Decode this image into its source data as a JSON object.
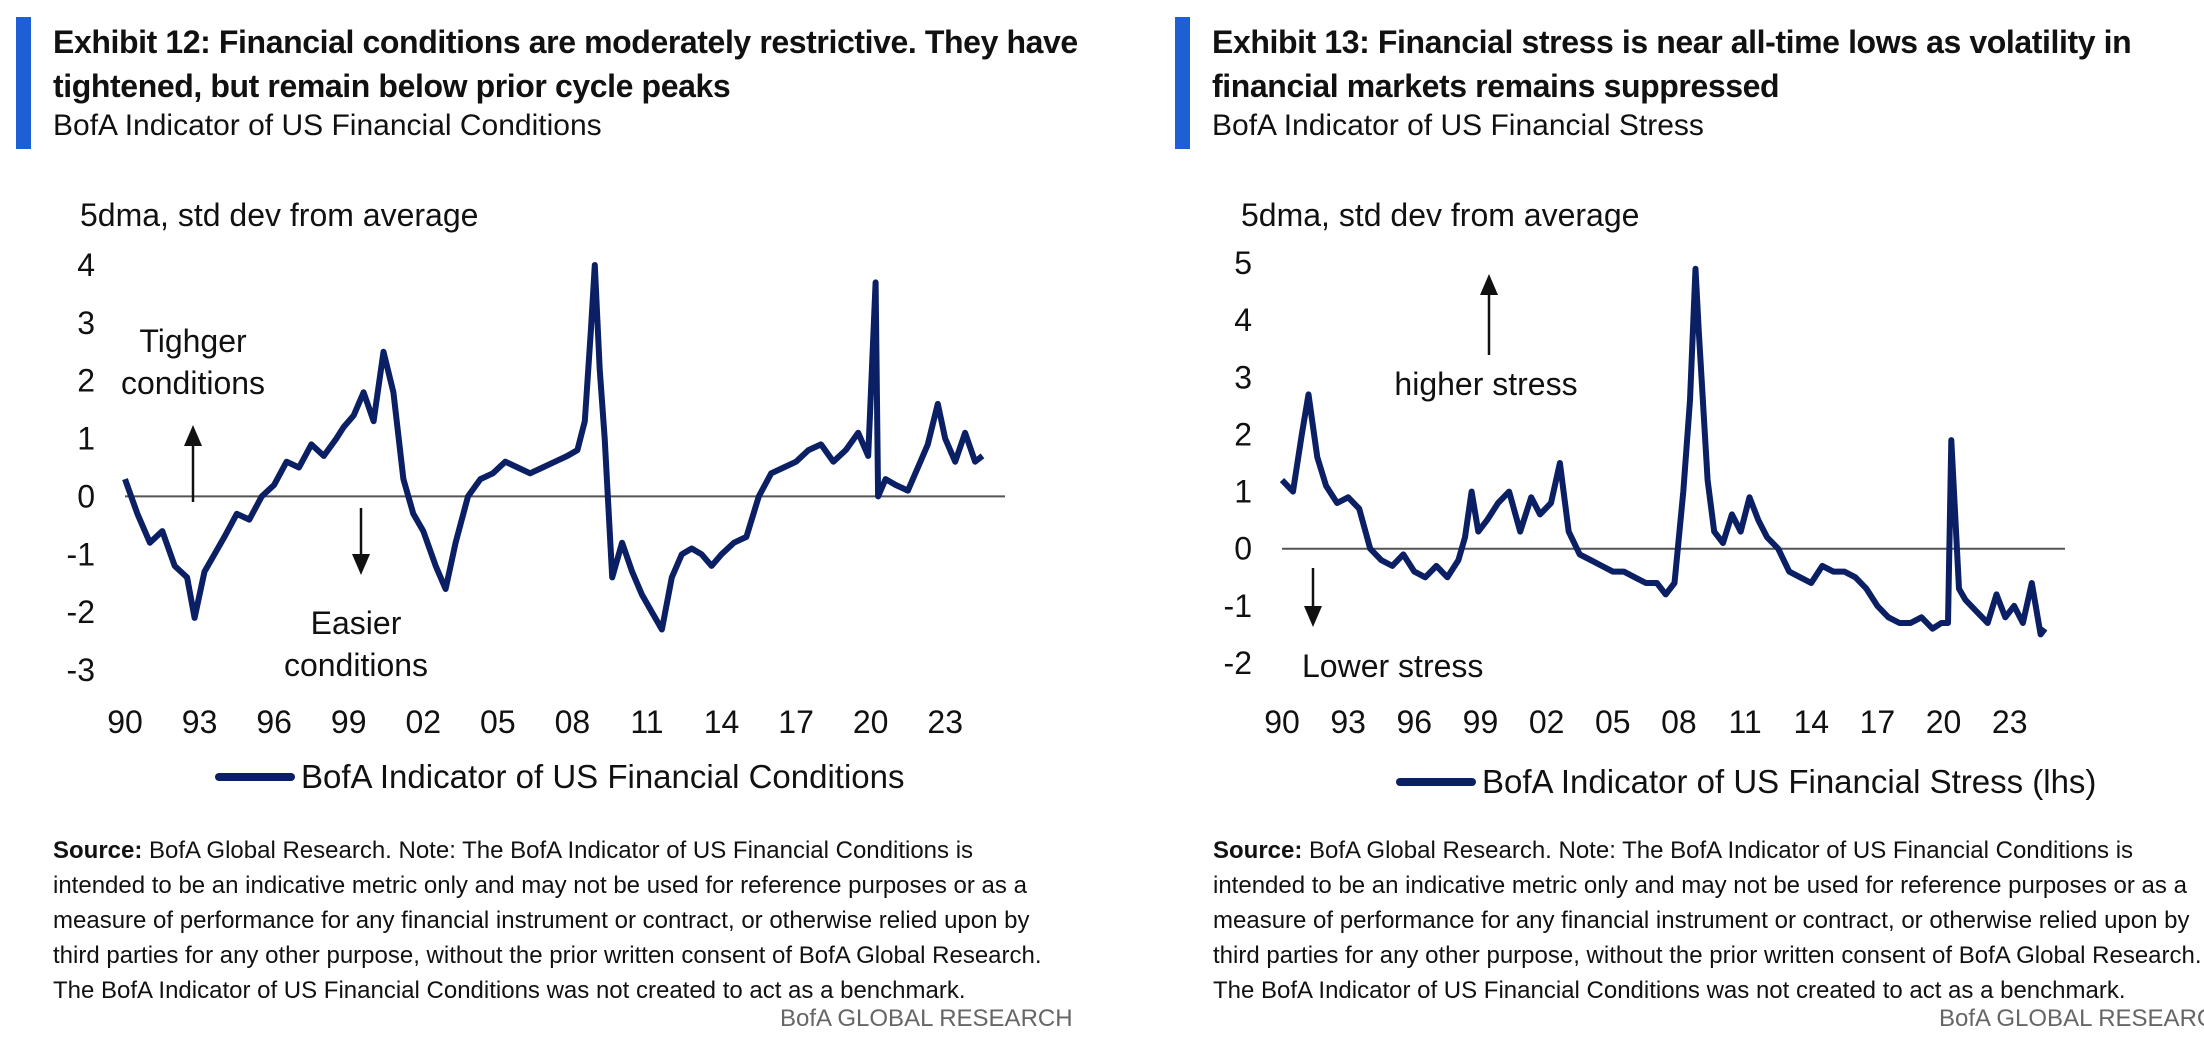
{
  "panels": [
    {
      "exhibit_title": "Exhibit 12: Financial conditions are moderately restrictive. They have tightened, but remain below prior cycle peaks",
      "subtitle": "BofA Indicator of US Financial Conditions",
      "ylabel": "5dma, std dev from average",
      "legend": "BofA Indicator of US Financial Conditions",
      "annotations": {
        "up_line1": "Tighger",
        "up_line2": "conditions",
        "down_line1": "Easier",
        "down_line2": "conditions"
      },
      "source_label": "Source:",
      "source_text": "BofA Global Research. Note: The BofA Indicator of US Financial Conditions is intended to be an indicative metric only and may not be used for reference purposes or as a measure of performance for any financial instrument or contract, or otherwise relied upon by third parties for any other purpose, without the prior written consent of BofA Global Research. The BofA Indicator of US Financial Conditions was not created to act as a benchmark.",
      "brand": "BofA GLOBAL RESEARCH"
    },
    {
      "exhibit_title": "Exhibit 13: Financial stress is near all-time lows as volatility in financial markets remains suppressed",
      "subtitle": "BofA Indicator of US Financial Stress",
      "ylabel": "5dma, std dev from average",
      "legend": "BofA Indicator of US Financial Stress (lhs)",
      "annotations": {
        "up_line1": "higher stress",
        "down_line1": "Lower stress"
      },
      "source_label": "Source:",
      "source_text": "BofA Global Research. Note: The BofA Indicator of US Financial Conditions is intended to be an indicative metric only and may not be used for reference purposes or as a measure of performance for any financial instrument or contract, or otherwise relied upon by third parties for any other purpose, without the prior written consent of BofA Global Research. The BofA Indicator of US Financial Conditions was not created to act as a benchmark.",
      "brand": "BofA GLOBAL RESEARCH"
    }
  ],
  "chart_data": [
    {
      "type": "line",
      "xlabel": "",
      "ylabel": "5dma, std dev from average",
      "xticks": [
        "90",
        "93",
        "96",
        "99",
        "02",
        "05",
        "08",
        "11",
        "14",
        "17",
        "20",
        "23"
      ],
      "yticks": [
        4,
        3,
        2,
        1,
        0,
        -1,
        -2,
        -3
      ],
      "xlim": [
        1990,
        2024.6
      ],
      "ylim": [
        -3,
        4
      ],
      "color": "#0b1f64",
      "series": [
        {
          "name": "BofA Indicator of US Financial Conditions",
          "x": [
            1990.0,
            1990.5,
            1991.0,
            1991.5,
            1992.0,
            1992.5,
            1992.8,
            1993.2,
            1993.6,
            1994.0,
            1994.5,
            1995.0,
            1995.5,
            1996.0,
            1996.5,
            1997.0,
            1997.5,
            1998.0,
            1998.5,
            1998.8,
            1999.2,
            1999.6,
            2000.0,
            2000.4,
            2000.8,
            2001.2,
            2001.6,
            2002.0,
            2002.5,
            2002.9,
            2003.3,
            2003.8,
            2004.3,
            2004.8,
            2005.3,
            2005.8,
            2006.3,
            2006.8,
            2007.3,
            2007.8,
            2008.2,
            2008.5,
            2008.75,
            2008.9,
            2009.1,
            2009.3,
            2009.6,
            2010.0,
            2010.4,
            2010.8,
            2011.2,
            2011.6,
            2012.0,
            2012.4,
            2012.8,
            2013.2,
            2013.6,
            2014.0,
            2014.5,
            2015.0,
            2015.5,
            2016.0,
            2016.5,
            2017.0,
            2017.5,
            2018.0,
            2018.5,
            2019.0,
            2019.5,
            2019.9,
            2020.2,
            2020.3,
            2020.6,
            2021.0,
            2021.5,
            2022.0,
            2022.3,
            2022.7,
            2023.0,
            2023.4,
            2023.8,
            2024.2,
            2024.5
          ],
          "y": [
            0.3,
            -0.3,
            -0.8,
            -0.6,
            -1.2,
            -1.4,
            -2.1,
            -1.3,
            -1.0,
            -0.7,
            -0.3,
            -0.4,
            0.0,
            0.2,
            0.6,
            0.5,
            0.9,
            0.7,
            1.0,
            1.2,
            1.4,
            1.8,
            1.3,
            2.5,
            1.8,
            0.3,
            -0.3,
            -0.6,
            -1.2,
            -1.6,
            -0.8,
            0.0,
            0.3,
            0.4,
            0.6,
            0.5,
            0.4,
            0.5,
            0.6,
            0.7,
            0.8,
            1.3,
            2.9,
            4.0,
            2.2,
            1.0,
            -1.4,
            -0.8,
            -1.3,
            -1.7,
            -2.0,
            -2.3,
            -1.4,
            -1.0,
            -0.9,
            -1.0,
            -1.2,
            -1.0,
            -0.8,
            -0.7,
            0.0,
            0.4,
            0.5,
            0.6,
            0.8,
            0.9,
            0.6,
            0.8,
            1.1,
            0.7,
            3.7,
            0.0,
            0.3,
            0.2,
            0.1,
            0.6,
            0.9,
            1.6,
            1.0,
            0.6,
            1.1,
            0.6,
            0.7
          ]
        }
      ]
    },
    {
      "type": "line",
      "xlabel": "",
      "ylabel": "5dma, std dev from average",
      "xticks": [
        "90",
        "93",
        "96",
        "99",
        "02",
        "05",
        "08",
        "11",
        "14",
        "17",
        "20",
        "23"
      ],
      "yticks": [
        5,
        4,
        3,
        2,
        1,
        0,
        -1,
        -2
      ],
      "xlim": [
        1990,
        2024.6
      ],
      "ylim": [
        -2,
        5
      ],
      "color": "#0b1f64",
      "series": [
        {
          "name": "BofA Indicator of US Financial Stress (lhs)",
          "x": [
            1990.0,
            1990.5,
            1990.9,
            1991.2,
            1991.6,
            1992.0,
            1992.5,
            1993.0,
            1993.5,
            1994.0,
            1994.5,
            1995.0,
            1995.5,
            1996.0,
            1996.5,
            1997.0,
            1997.5,
            1998.0,
            1998.3,
            1998.6,
            1998.9,
            1999.3,
            1999.8,
            2000.3,
            2000.8,
            2001.3,
            2001.7,
            2002.2,
            2002.6,
            2003.0,
            2003.5,
            2004.0,
            2004.5,
            2005.0,
            2005.5,
            2006.0,
            2006.5,
            2007.0,
            2007.4,
            2007.8,
            2008.2,
            2008.5,
            2008.75,
            2008.9,
            2009.1,
            2009.3,
            2009.6,
            2010.0,
            2010.4,
            2010.8,
            2011.2,
            2011.6,
            2012.0,
            2012.5,
            2013.0,
            2013.5,
            2014.0,
            2014.5,
            2015.0,
            2015.5,
            2016.0,
            2016.5,
            2017.0,
            2017.5,
            2018.0,
            2018.5,
            2019.0,
            2019.5,
            2019.9,
            2020.2,
            2020.35,
            2020.7,
            2021.0,
            2021.5,
            2022.0,
            2022.4,
            2022.8,
            2023.2,
            2023.6,
            2024.0,
            2024.4,
            2024.6
          ],
          "y": [
            1.2,
            1.0,
            2.0,
            2.7,
            1.6,
            1.1,
            0.8,
            0.9,
            0.7,
            0.0,
            -0.2,
            -0.3,
            -0.1,
            -0.4,
            -0.5,
            -0.3,
            -0.5,
            -0.2,
            0.2,
            1.0,
            0.3,
            0.5,
            0.8,
            1.0,
            0.3,
            0.9,
            0.6,
            0.8,
            1.5,
            0.3,
            -0.1,
            -0.2,
            -0.3,
            -0.4,
            -0.4,
            -0.5,
            -0.6,
            -0.6,
            -0.8,
            -0.6,
            1.0,
            2.6,
            4.9,
            3.8,
            2.5,
            1.2,
            0.3,
            0.1,
            0.6,
            0.3,
            0.9,
            0.5,
            0.2,
            0.0,
            -0.4,
            -0.5,
            -0.6,
            -0.3,
            -0.4,
            -0.4,
            -0.5,
            -0.7,
            -1.0,
            -1.2,
            -1.3,
            -1.3,
            -1.2,
            -1.4,
            -1.3,
            -1.3,
            1.9,
            -0.7,
            -0.9,
            -1.1,
            -1.3,
            -0.8,
            -1.2,
            -1.0,
            -1.3,
            -0.6,
            -1.5,
            -1.4
          ]
        }
      ]
    }
  ]
}
